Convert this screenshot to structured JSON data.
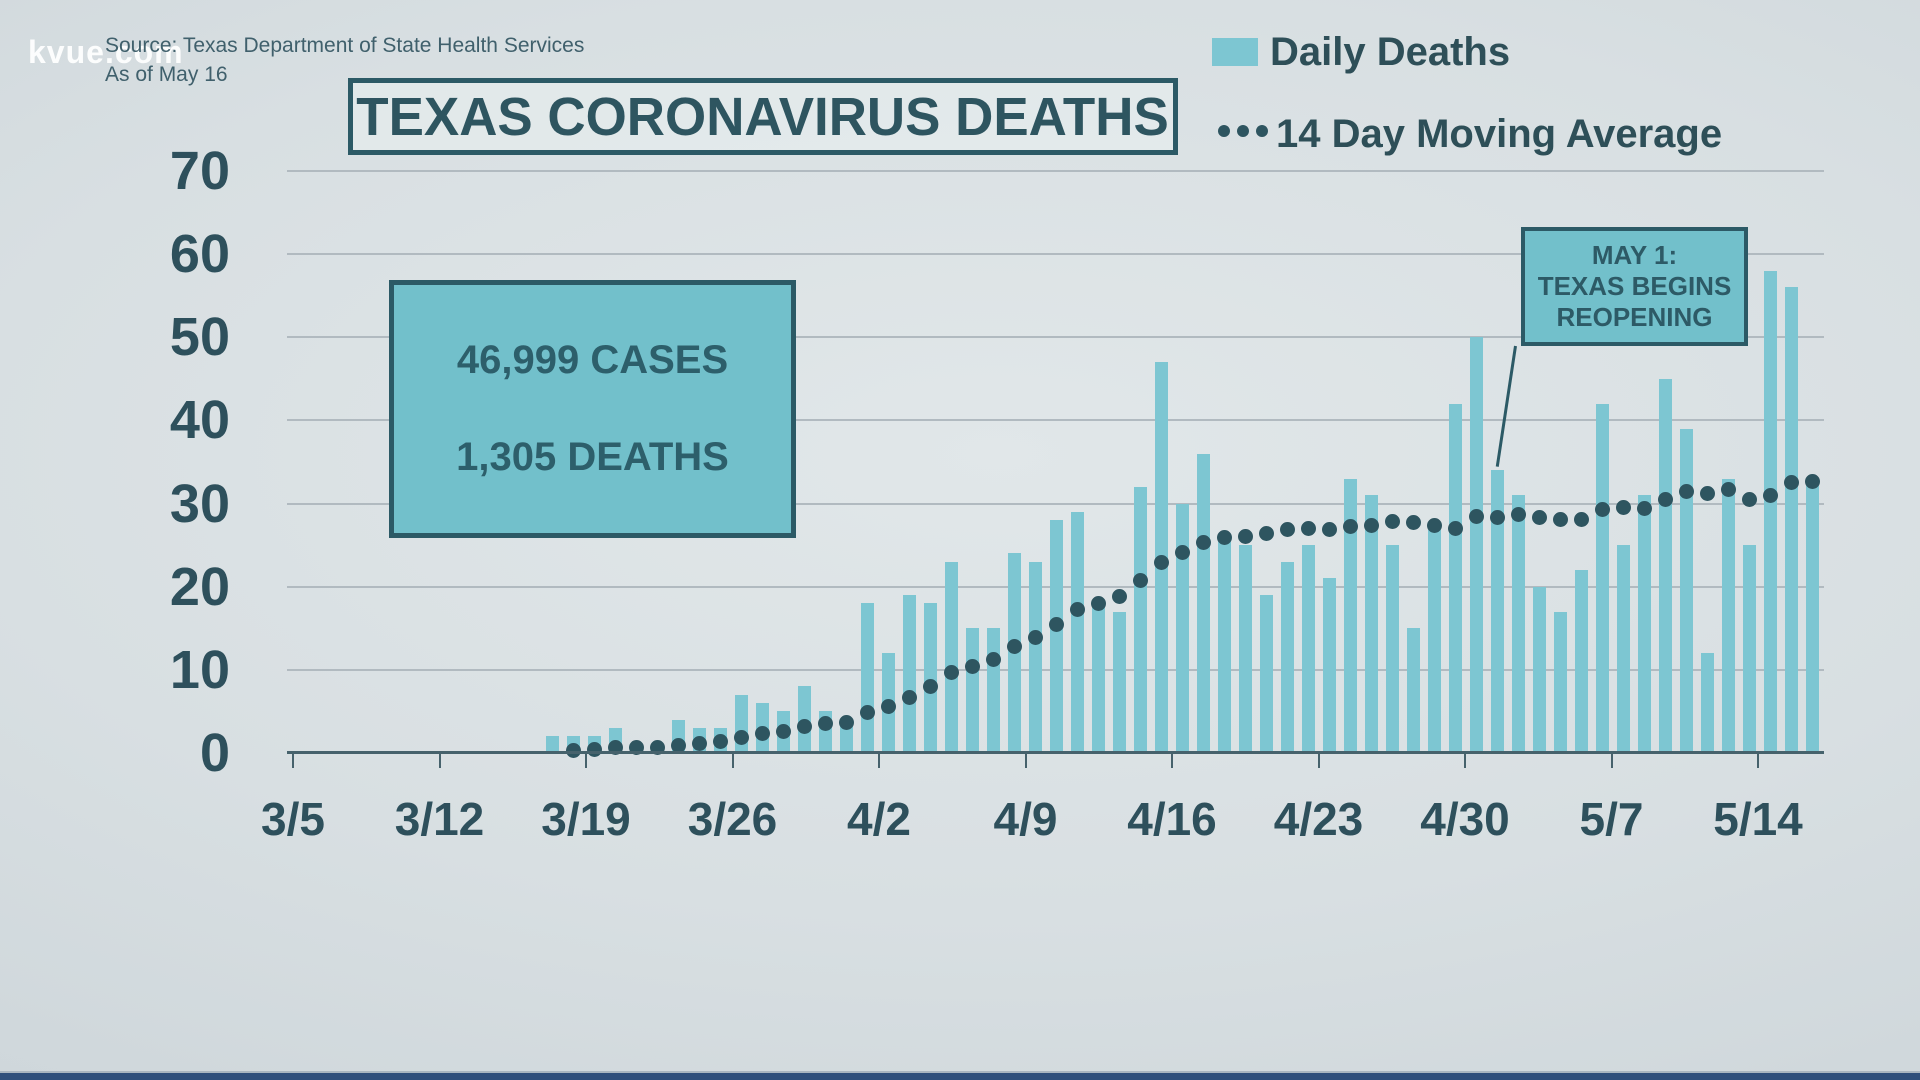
{
  "watermark": "kvue.com",
  "header": {
    "source_line": "Source: Texas Department of State Health Services",
    "as_of_line": "As of May 16"
  },
  "title": "TEXAS CORONAVIRUS DEATHS",
  "legend": {
    "daily_label": "Daily Deaths",
    "ma_label": "14 Day Moving Average"
  },
  "stats_box": {
    "cases_line": "46,999 CASES",
    "deaths_line": "1,305 DEATHS"
  },
  "annotation": {
    "line1": "MAY 1:",
    "line2": "TEXAS BEGINS",
    "line3": "REOPENING",
    "points_to_date": "5/1"
  },
  "colors": {
    "bar": "#7dc6d2",
    "dot": "#2e5560",
    "dark_teal_text": "#2e505c",
    "box_fill": "#72c0cb",
    "box_border": "#2c5a66",
    "gridline": "#b1bac0",
    "background": "#d8dfe2",
    "bottom_strip": "#2f4f7b"
  },
  "chart_data": {
    "type": "bar",
    "title": "TEXAS CORONAVIRUS DEATHS",
    "xlabel": "",
    "ylabel": "",
    "ylim": [
      0,
      70
    ],
    "y_ticks": [
      0,
      10,
      20,
      30,
      40,
      50,
      60,
      70
    ],
    "grid": true,
    "legend_position": "top-right",
    "x_tick_labels": [
      "3/5",
      "3/12",
      "3/19",
      "3/26",
      "4/2",
      "4/9",
      "4/16",
      "4/23",
      "4/30",
      "5/7",
      "5/14"
    ],
    "dates": [
      "3/17",
      "3/18",
      "3/19",
      "3/20",
      "3/21",
      "3/22",
      "3/23",
      "3/24",
      "3/25",
      "3/26",
      "3/27",
      "3/28",
      "3/29",
      "3/30",
      "3/31",
      "4/1",
      "4/2",
      "4/3",
      "4/4",
      "4/5",
      "4/6",
      "4/7",
      "4/8",
      "4/9",
      "4/10",
      "4/11",
      "4/12",
      "4/13",
      "4/14",
      "4/15",
      "4/16",
      "4/17",
      "4/18",
      "4/19",
      "4/20",
      "4/21",
      "4/22",
      "4/23",
      "4/24",
      "4/25",
      "4/26",
      "4/27",
      "4/28",
      "4/29",
      "4/30",
      "5/1",
      "5/2",
      "5/3",
      "5/4",
      "5/5",
      "5/6",
      "5/7",
      "5/8",
      "5/9",
      "5/10",
      "5/11",
      "5/12",
      "5/13",
      "5/14",
      "5/15",
      "5/16"
    ],
    "series": [
      {
        "name": "Daily Deaths",
        "type": "bar",
        "values": [
          2,
          2,
          2,
          3,
          0,
          0,
          4,
          3,
          3,
          7,
          6,
          5,
          8,
          5,
          4,
          18,
          12,
          19,
          18,
          23,
          15,
          15,
          24,
          23,
          28,
          29,
          18,
          17,
          32,
          47,
          30,
          36,
          26,
          25,
          19,
          23,
          25,
          21,
          33,
          31,
          25,
          15,
          27,
          42,
          50,
          34,
          31,
          20,
          17,
          22,
          42,
          25,
          31,
          45,
          39,
          12,
          33,
          25,
          58,
          56,
          33
        ]
      },
      {
        "name": "14 Day Moving Average",
        "type": "dotted-line",
        "values": [
          0.14,
          0.29,
          0.43,
          0.64,
          0.64,
          0.64,
          0.93,
          1.14,
          1.36,
          1.86,
          2.29,
          2.64,
          3.21,
          3.57,
          3.71,
          4.86,
          5.57,
          6.71,
          8.0,
          9.64,
          10.43,
          11.29,
          12.79,
          13.93,
          15.5,
          17.21,
          17.93,
          18.79,
          20.79,
          22.86,
          24.14,
          25.36,
          25.93,
          26.07,
          26.36,
          26.93,
          27.0,
          26.86,
          27.21,
          27.36,
          27.86,
          27.71,
          27.36,
          27.0,
          28.43,
          28.29,
          28.64,
          28.29,
          28.14,
          28.07,
          29.29,
          29.57,
          29.43,
          30.43,
          31.43,
          31.21,
          31.64,
          30.43,
          31.0,
          32.57,
          32.71
        ]
      }
    ]
  }
}
